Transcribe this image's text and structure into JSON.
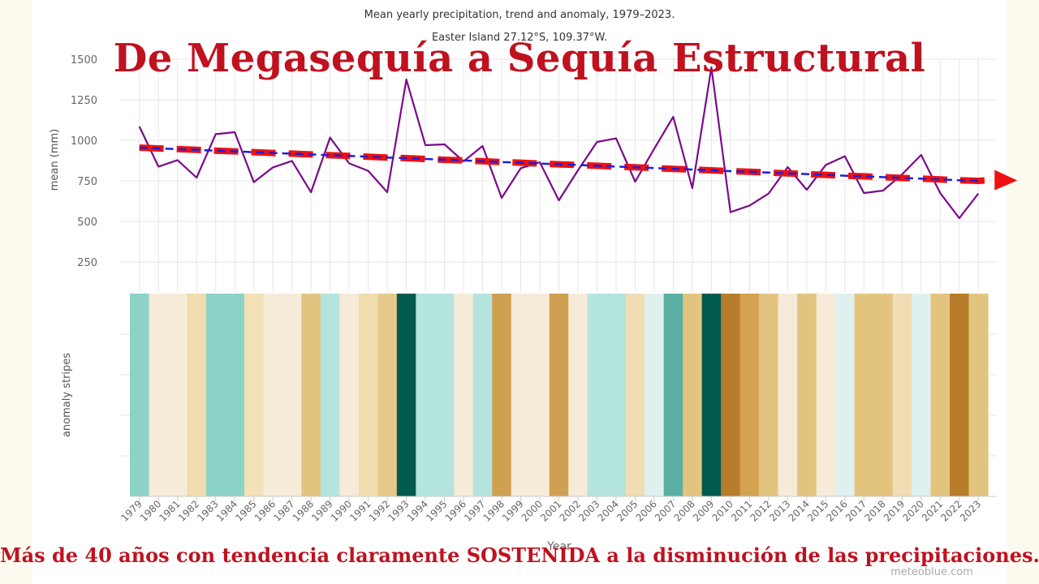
{
  "chart_data": {
    "type": "line",
    "title": "Mean yearly precipitation, trend and anomaly, 1979–2023.",
    "subtitle": "Easter Island 27.12°S, 109.37°W.",
    "xlabel": "Year",
    "ylabel": "mean (mm)",
    "stripes_label": "anomaly stripes",
    "ylim": [
      0,
      1500
    ],
    "yticks": [
      250,
      500,
      750,
      1000,
      1250,
      1500
    ],
    "grid": true,
    "categories": [
      "1979",
      "1980",
      "1981",
      "1982",
      "1983",
      "1984",
      "1985",
      "1986",
      "1987",
      "1988",
      "1989",
      "1990",
      "1991",
      "1992",
      "1993",
      "1994",
      "1995",
      "1996",
      "1997",
      "1998",
      "1999",
      "2000",
      "2001",
      "2002",
      "2003",
      "2004",
      "2005",
      "2006",
      "2007",
      "2008",
      "2009",
      "2010",
      "2011",
      "2012",
      "2013",
      "2014",
      "2015",
      "2016",
      "2017",
      "2018",
      "2019",
      "2020",
      "2021",
      "2022",
      "2023"
    ],
    "series": [
      {
        "values": [
          1085,
          838,
          878,
          770,
          1038,
          1050,
          742,
          833,
          873,
          680,
          1017,
          858,
          812,
          680,
          1375,
          970,
          975,
          870,
          965,
          645,
          828,
          865,
          630,
          815,
          990,
          1012,
          745,
          948,
          1145,
          705,
          1450,
          557,
          598,
          672,
          835,
          695,
          848,
          902,
          675,
          690,
          790,
          910,
          675,
          520,
          672
        ],
        "color": "#7b0a8a"
      },
      {
        "values": [
          955,
          950,
          946,
          941,
          936,
          932,
          927,
          922,
          918,
          913,
          908,
          904,
          899,
          894,
          890,
          885,
          880,
          876,
          871,
          866,
          862,
          857,
          852,
          848,
          843,
          838,
          834,
          829,
          824,
          820,
          815,
          810,
          806,
          801,
          796,
          792,
          787,
          782,
          778,
          773,
          768,
          764,
          759,
          754,
          750
        ],
        "color": "#1e1ed8"
      }
    ],
    "stripe_colors": [
      "#8dd2c6",
      "#f5ebd8",
      "#f5ebd8",
      "#efdcaf",
      "#8dd2c6",
      "#8dd2c6",
      "#f3e1b7",
      "#f5ebd8",
      "#f5ebd8",
      "#e3c47f",
      "#b4e4de",
      "#f5ebd8",
      "#efdcaf",
      "#e6c98a",
      "#005a50",
      "#b4e4de",
      "#b4e4de",
      "#f5ebd8",
      "#b4e4de",
      "#cf9f52",
      "#f5ebd8",
      "#f5ebd8",
      "#cf9f52",
      "#f5ebd8",
      "#b4e4de",
      "#b4e4de",
      "#f0ddb3",
      "#def1ee",
      "#5bb0a4",
      "#e3c47f",
      "#005a50",
      "#b87d2c",
      "#d4a253",
      "#e3c47f",
      "#f5ebd8",
      "#e3c47f",
      "#f5ebd8",
      "#def1ee",
      "#e3c47f",
      "#e3c47f",
      "#f0ddb3",
      "#def1ee",
      "#e3c47f",
      "#b87d2c",
      "#e3c47f"
    ],
    "trend_arrow_color": "#ee1111"
  },
  "overlay": {
    "title": "De Megasequía a Sequía Estructural",
    "caption": "Más de 40 años con tendencia claramente SOSTENIDA a la disminución de las precipitaciones."
  },
  "watermark": "meteoblue.com"
}
